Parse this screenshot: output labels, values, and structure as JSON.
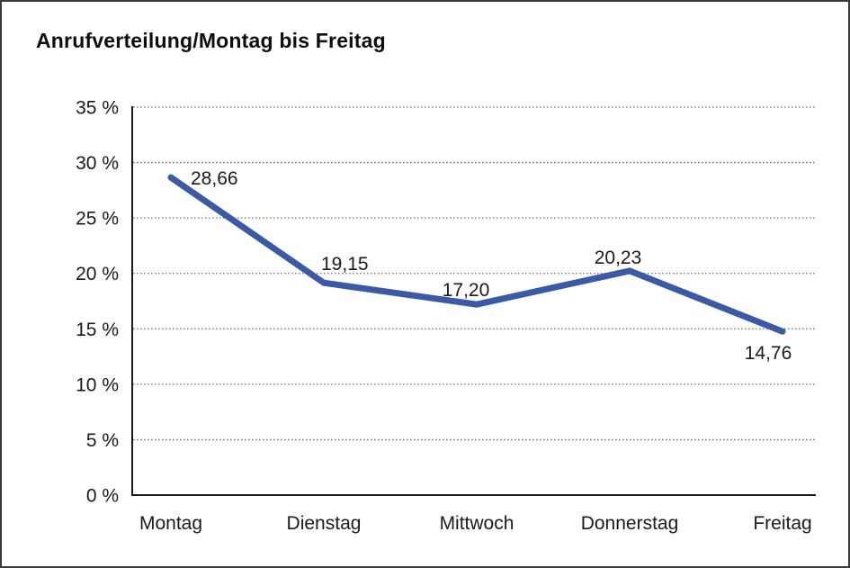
{
  "window": {
    "background": "#ffffff",
    "border_color": "#3a3a3a"
  },
  "chart_data": {
    "type": "line",
    "title": "Anrufverteilung/Montag bis Freitag",
    "categories": [
      "Montag",
      "Dienstag",
      "Mittwoch",
      "Donnerstag",
      "Freitag"
    ],
    "values": [
      28.66,
      19.15,
      17.2,
      20.23,
      14.76
    ],
    "value_labels": [
      "28,66",
      "19,15",
      "17,20",
      "20,23",
      "14,76"
    ],
    "xlabel": "",
    "ylabel": "",
    "ylim": [
      0,
      35
    ],
    "ytick_step": 5,
    "ytick_labels": [
      "0 %",
      "5 %",
      "10 %",
      "15 %",
      "20 %",
      "25 %",
      "30 %",
      "35 %"
    ],
    "grid": "horizontal-dotted",
    "legend": "none",
    "line_color": "#3a5aa6",
    "axis_color": "#1a1a1a",
    "grid_color": "#737373",
    "text_color": "#1a1a1a"
  }
}
